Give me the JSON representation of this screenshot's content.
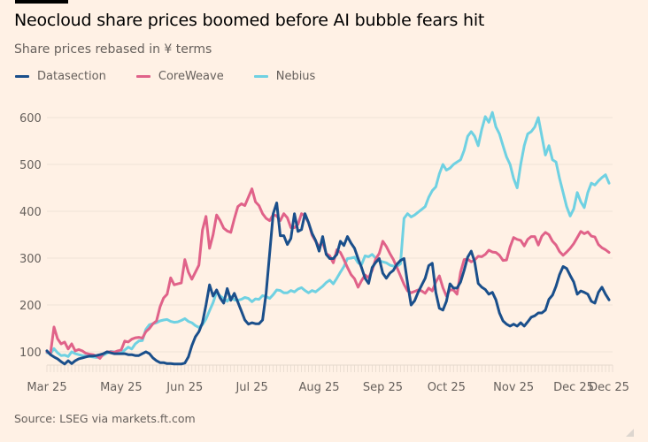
{
  "header": {
    "title": "Neocloud share prices boomed before AI bubble fears hit",
    "subtitle": "Share prices rebased in ¥ terms"
  },
  "footer": {
    "source": "Source: LSEG via markets.ft.com"
  },
  "chart_data": {
    "type": "line",
    "title": "Neocloud share prices boomed before AI bubble fears hit",
    "subtitle": "Share prices rebased in ¥ terms",
    "xlabel": "",
    "ylabel": "",
    "ylim": [
      70,
      630
    ],
    "yticks": [
      100,
      200,
      300,
      400,
      500,
      600
    ],
    "grid": true,
    "legend_position": "top-left",
    "x_domain": [
      0,
      160
    ],
    "x_ticks": [
      {
        "pos": 0,
        "label": "Mar 25"
      },
      {
        "pos": 21,
        "label": "May 25"
      },
      {
        "pos": 39,
        "label": "Jun 25"
      },
      {
        "pos": 58,
        "label": "Jul 25"
      },
      {
        "pos": 77,
        "label": "Aug 25"
      },
      {
        "pos": 95,
        "label": "Sep 25"
      },
      {
        "pos": 113,
        "label": "Oct 25"
      },
      {
        "pos": 132,
        "label": "Nov 25"
      },
      {
        "pos": 149,
        "label": "Dec 25"
      },
      {
        "pos": 159,
        "label": "Dec 25"
      }
    ],
    "series": [
      {
        "name": "Datasection",
        "color": "#1a4f8b",
        "x": [
          0,
          1,
          2,
          3,
          4,
          5,
          6,
          7,
          8,
          9,
          10,
          11,
          12,
          13,
          14,
          15,
          16,
          17,
          18,
          19,
          20,
          21,
          22,
          23,
          24,
          25,
          26,
          27,
          28,
          29,
          30,
          31,
          32,
          33,
          34,
          35,
          36,
          37,
          38,
          39,
          40,
          41,
          42,
          43,
          44,
          45,
          46,
          47,
          48,
          49,
          50,
          51,
          52,
          53,
          54,
          55,
          56,
          57,
          58,
          59,
          60,
          61,
          62,
          63,
          64,
          65,
          66,
          67,
          68,
          69,
          70,
          71,
          72,
          73,
          74,
          75,
          76,
          77,
          78,
          79,
          80,
          81,
          82,
          83,
          84,
          85,
          86,
          87,
          88,
          89,
          90,
          91,
          92,
          93,
          94,
          95,
          96,
          97,
          98,
          99,
          100,
          101,
          102,
          103,
          104,
          105,
          106,
          107,
          108,
          109,
          110,
          111,
          112,
          113,
          114,
          115,
          116,
          117,
          118,
          119,
          120,
          121,
          122,
          123,
          124,
          125,
          126,
          127,
          128,
          129,
          130,
          131,
          132,
          133,
          134,
          135,
          136,
          137,
          138,
          139,
          140,
          141,
          142,
          143,
          144,
          145,
          146,
          147,
          148,
          149,
          150,
          151,
          152,
          153,
          154,
          155,
          156,
          157,
          158,
          159
        ],
        "values": [
          102,
          94,
          89,
          85,
          79,
          74,
          81,
          75,
          81,
          85,
          87,
          89,
          91,
          91,
          92,
          94,
          96,
          100,
          98,
          96,
          96,
          96,
          96,
          94,
          94,
          92,
          92,
          96,
          100,
          96,
          87,
          81,
          77,
          77,
          75,
          75,
          74,
          74,
          74,
          76,
          89,
          113,
          132,
          143,
          162,
          200,
          243,
          219,
          232,
          215,
          204,
          235,
          210,
          225,
          206,
          187,
          168,
          159,
          162,
          160,
          160,
          168,
          225,
          310,
          395,
          418,
          348,
          348,
          329,
          342,
          395,
          357,
          361,
          395,
          376,
          353,
          338,
          315,
          346,
          308,
          299,
          299,
          308,
          336,
          327,
          346,
          332,
          321,
          299,
          280,
          257,
          246,
          280,
          291,
          299,
          268,
          257,
          268,
          274,
          287,
          295,
          299,
          246,
          200,
          209,
          227,
          242,
          257,
          284,
          289,
          227,
          193,
          189,
          208,
          245,
          236,
          236,
          249,
          274,
          302,
          315,
          292,
          246,
          238,
          233,
          223,
          227,
          211,
          183,
          166,
          159,
          155,
          159,
          155,
          162,
          155,
          164,
          174,
          177,
          183,
          183,
          189,
          212,
          221,
          240,
          265,
          282,
          278,
          263,
          249,
          223,
          230,
          227,
          223,
          208,
          204,
          227,
          238,
          223,
          211
        ]
      },
      {
        "name": "CoreWeave",
        "color": "#e06289",
        "x": [
          0,
          1,
          2,
          3,
          4,
          5,
          6,
          7,
          8,
          9,
          10,
          11,
          12,
          13,
          14,
          15,
          16,
          17,
          18,
          19,
          20,
          21,
          22,
          23,
          24,
          25,
          26,
          27,
          28,
          29,
          30,
          31,
          32,
          33,
          34,
          35,
          36,
          37,
          38,
          39,
          40,
          41,
          42,
          43,
          44,
          45,
          46,
          47,
          48,
          49,
          50,
          51,
          52,
          53,
          54,
          55,
          56,
          57,
          58,
          59,
          60,
          61,
          62,
          63,
          64,
          65,
          66,
          67,
          68,
          69,
          70,
          71,
          72,
          73,
          74,
          75,
          76,
          77,
          78,
          79,
          80,
          81,
          82,
          83,
          84,
          85,
          86,
          87,
          88,
          89,
          90,
          91,
          92,
          93,
          94,
          95,
          96,
          97,
          98,
          99,
          100,
          101,
          102,
          103,
          104,
          105,
          106,
          107,
          108,
          109,
          110,
          111,
          112,
          113,
          114,
          115,
          116,
          117,
          118,
          119,
          120,
          121,
          122,
          123,
          124,
          125,
          126,
          127,
          128,
          129,
          130,
          131,
          132,
          133,
          134,
          135,
          136,
          137,
          138,
          139,
          140,
          141,
          142,
          143,
          144,
          145,
          146,
          147,
          148,
          149,
          150,
          151,
          152,
          153,
          154,
          155,
          156,
          157,
          158,
          159
        ],
        "values": [
          100,
          96,
          153,
          128,
          117,
          121,
          106,
          117,
          102,
          105,
          102,
          97,
          95,
          94,
          91,
          86,
          96,
          100,
          100,
          99,
          102,
          104,
          123,
          121,
          127,
          130,
          131,
          129,
          143,
          150,
          160,
          166,
          196,
          215,
          223,
          258,
          243,
          245,
          247,
          297,
          270,
          255,
          270,
          285,
          360,
          389,
          321,
          350,
          392,
          380,
          364,
          358,
          355,
          384,
          410,
          416,
          412,
          430,
          448,
          420,
          412,
          395,
          385,
          380,
          393,
          390,
          380,
          395,
          386,
          365,
          365,
          372,
          395,
          390,
          376,
          349,
          336,
          325,
          333,
          310,
          305,
          290,
          318,
          312,
          297,
          280,
          265,
          256,
          238,
          252,
          264,
          258,
          274,
          298,
          310,
          336,
          325,
          310,
          297,
          280,
          262,
          244,
          230,
          226,
          229,
          232,
          230,
          225,
          236,
          230,
          249,
          262,
          237,
          219,
          232,
          232,
          223,
          270,
          297,
          298,
          292,
          296,
          304,
          303,
          308,
          317,
          313,
          312,
          306,
          295,
          296,
          324,
          344,
          340,
          338,
          326,
          340,
          346,
          346,
          328,
          347,
          355,
          350,
          336,
          328,
          314,
          306,
          313,
          321,
          331,
          344,
          357,
          352,
          356,
          347,
          345,
          329,
          322,
          318,
          312
        ]
      },
      {
        "name": "Nebius",
        "color": "#6fd1e2",
        "x": [
          0,
          1,
          2,
          3,
          4,
          5,
          6,
          7,
          8,
          9,
          10,
          11,
          12,
          13,
          14,
          15,
          16,
          17,
          18,
          19,
          20,
          21,
          22,
          23,
          24,
          25,
          26,
          27,
          28,
          29,
          30,
          31,
          32,
          33,
          34,
          35,
          36,
          37,
          38,
          39,
          40,
          41,
          42,
          43,
          44,
          45,
          46,
          47,
          48,
          49,
          50,
          51,
          52,
          53,
          54,
          55,
          56,
          57,
          58,
          59,
          60,
          61,
          62,
          63,
          64,
          65,
          66,
          67,
          68,
          69,
          70,
          71,
          72,
          73,
          74,
          75,
          76,
          77,
          78,
          79,
          80,
          81,
          82,
          83,
          84,
          85,
          86,
          87,
          88,
          89,
          90,
          91,
          92,
          93,
          94,
          95,
          96,
          97,
          98,
          99,
          100,
          101,
          102,
          103,
          104,
          105,
          106,
          107,
          108,
          109,
          110,
          111,
          112,
          113,
          114,
          115,
          116,
          117,
          118,
          119,
          120,
          121,
          122,
          123,
          124,
          125,
          126,
          127,
          128,
          129,
          130,
          131,
          132,
          133,
          134,
          135,
          136,
          137,
          138,
          139,
          140,
          141,
          142,
          143,
          144,
          145,
          146,
          147,
          148,
          149,
          150,
          151,
          152,
          153,
          154,
          155,
          156,
          157,
          158,
          159
        ],
        "values": [
          98,
          96,
          107,
          98,
          92,
          93,
          90,
          100,
          96,
          94,
          92,
          91,
          90,
          89,
          88,
          89,
          93,
          97,
          101,
          100,
          98,
          97,
          104,
          110,
          106,
          117,
          123,
          124,
          148,
          158,
          160,
          162,
          166,
          168,
          169,
          165,
          163,
          164,
          167,
          171,
          165,
          162,
          156,
          152,
          158,
          170,
          188,
          205,
          228,
          219,
          214,
          208,
          218,
          211,
          210,
          212,
          216,
          214,
          207,
          213,
          212,
          220,
          218,
          214,
          222,
          232,
          231,
          226,
          226,
          231,
          228,
          234,
          237,
          231,
          226,
          231,
          228,
          234,
          240,
          248,
          253,
          245,
          257,
          270,
          282,
          299,
          300,
          302,
          290,
          286,
          305,
          303,
          308,
          300,
          294,
          292,
          290,
          285,
          283,
          282,
          288,
          385,
          395,
          388,
          392,
          398,
          404,
          410,
          430,
          444,
          452,
          480,
          500,
          488,
          492,
          500,
          505,
          510,
          530,
          560,
          570,
          560,
          540,
          575,
          602,
          590,
          611,
          580,
          565,
          540,
          516,
          500,
          470,
          450,
          500,
          540,
          565,
          570,
          580,
          600,
          560,
          520,
          540,
          510,
          505,
          470,
          440,
          410,
          390,
          405,
          440,
          420,
          408,
          440,
          460,
          456,
          465,
          472,
          478,
          460
        ]
      }
    ]
  }
}
